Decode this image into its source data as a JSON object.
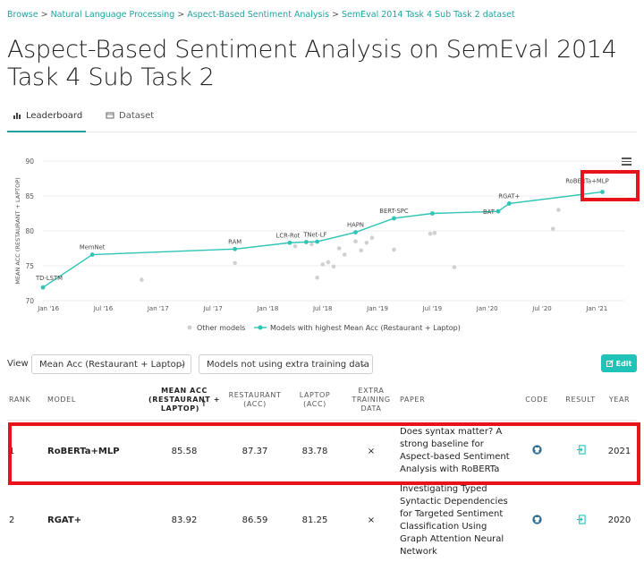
{
  "breadcrumb": {
    "items": [
      "Browse",
      "Natural Language Processing",
      "Aspect-Based Sentiment Analysis",
      "SemEval 2014 Task 4 Sub Task 2 dataset"
    ],
    "separator": ">"
  },
  "title": "Aspect-Based Sentiment Analysis on SemEval 2014 Task 4 Sub Task 2",
  "tabs": {
    "leaderboard": "Leaderboard",
    "dataset": "Dataset"
  },
  "chart_data": {
    "type": "scatter",
    "ylabel": "MEAN ACC (RESTAURANT + LAPTOP)",
    "ylim": [
      70,
      90
    ],
    "yticks": [
      "70",
      "75",
      "80",
      "85",
      "90"
    ],
    "xticks": [
      "Jan '16",
      "Jul '16",
      "Jan '17",
      "Jul '17",
      "Jan '18",
      "Jul '18",
      "Jan '19",
      "Jul '19",
      "Jan '20",
      "Jul '20",
      "Jan '21"
    ],
    "legend": [
      "Other models",
      "Models with highest Mean Acc (Restaurant + Laptop)"
    ],
    "sota_series": [
      {
        "x": 2015.95,
        "y": 71.9,
        "label": "TD-LSTM"
      },
      {
        "x": 2016.4,
        "y": 76.6,
        "label": "MemNet"
      },
      {
        "x": 2017.7,
        "y": 77.4,
        "label": "RAM"
      },
      {
        "x": 2018.2,
        "y": 78.3,
        "label": "LCR-Rot"
      },
      {
        "x": 2018.35,
        "y": 78.4,
        "label": "TNet-LF"
      },
      {
        "x": 2018.45,
        "y": 78.45,
        "label": ""
      },
      {
        "x": 2018.8,
        "y": 79.8,
        "label": "HAPN"
      },
      {
        "x": 2019.15,
        "y": 81.8,
        "label": "BERT-SPC"
      },
      {
        "x": 2019.5,
        "y": 82.5,
        "label": ""
      },
      {
        "x": 2020.1,
        "y": 82.8,
        "label": "BAT"
      },
      {
        "x": 2020.2,
        "y": 83.92,
        "label": "RGAT+"
      },
      {
        "x": 2021.05,
        "y": 85.58,
        "label": "RoBERTa+MLP"
      }
    ],
    "other_points": [
      {
        "x": 2016.85,
        "y": 73.0
      },
      {
        "x": 2017.7,
        "y": 75.4
      },
      {
        "x": 2018.25,
        "y": 77.8
      },
      {
        "x": 2018.4,
        "y": 78.1
      },
      {
        "x": 2018.45,
        "y": 73.3
      },
      {
        "x": 2018.5,
        "y": 75.2
      },
      {
        "x": 2018.55,
        "y": 75.5
      },
      {
        "x": 2018.6,
        "y": 74.9
      },
      {
        "x": 2018.65,
        "y": 77.5
      },
      {
        "x": 2018.7,
        "y": 76.6
      },
      {
        "x": 2018.8,
        "y": 78.5
      },
      {
        "x": 2018.85,
        "y": 77.2
      },
      {
        "x": 2018.9,
        "y": 78.3
      },
      {
        "x": 2018.95,
        "y": 79.0
      },
      {
        "x": 2019.15,
        "y": 77.3
      },
      {
        "x": 2019.48,
        "y": 79.6
      },
      {
        "x": 2019.52,
        "y": 79.7
      },
      {
        "x": 2019.7,
        "y": 74.8
      },
      {
        "x": 2020.6,
        "y": 80.3
      },
      {
        "x": 2020.65,
        "y": 83.0
      }
    ]
  },
  "controls": {
    "view_label": "View",
    "metric_select": "Mean Acc (Restaurant + Laptop)",
    "filter_select": "Models not using extra training data",
    "edit_label": "Edit"
  },
  "table": {
    "headers": {
      "rank": "RANK",
      "model": "MODEL",
      "mean_acc": "MEAN ACC (RESTAURANT + LAPTOP)",
      "restaurant": "RESTAURANT (ACC)",
      "laptop": "LAPTOP (ACC)",
      "extra": "EXTRA TRAINING DATA",
      "paper": "PAPER",
      "code": "CODE",
      "result": "RESULT",
      "year": "YEAR"
    },
    "rows": [
      {
        "rank": "1",
        "model": "RoBERTa+MLP",
        "mean": "85.58",
        "restaurant": "87.37",
        "laptop": "83.78",
        "extra": "×",
        "paper": "Does syntax matter? A strong baseline for Aspect-based Sentiment Analysis with RoBERTa",
        "year": "2021"
      },
      {
        "rank": "2",
        "model": "RGAT+",
        "mean": "83.92",
        "restaurant": "86.59",
        "laptop": "81.25",
        "extra": "×",
        "paper": "Investigating Typed Syntactic Dependencies for Targeted Sentiment Classification Using Graph Attention Neural Network",
        "year": "2020"
      }
    ]
  },
  "colors": {
    "accent": "#21a3a0",
    "series": "#2ec4b6",
    "other": "#d0d0d0",
    "highlight": "#e8121a"
  }
}
